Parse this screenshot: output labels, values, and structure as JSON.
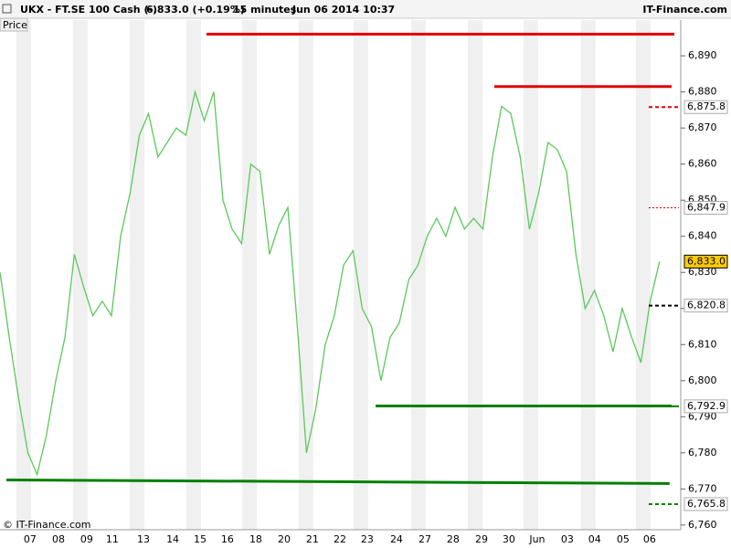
{
  "header": {
    "symbol": "UKX - FT.SE 100 Cash (-)",
    "quote": "6,833.0 (+0.19%)",
    "interval": "15 minutes",
    "datetime": "Jun 06 2014 10:37",
    "brand": "IT-Finance.com"
  },
  "panel_label": "Price",
  "copyright": "© IT-Finance.com",
  "chart_data": {
    "type": "line",
    "series": [
      {
        "color": "#5cc85c",
        "x": [
          0,
          0.33,
          0.67,
          1,
          1.33,
          1.67,
          2,
          2.33,
          2.67,
          3,
          3.33,
          3.67,
          4,
          4.33,
          4.67,
          5,
          5.33,
          5.67,
          6,
          6.33,
          6.67,
          7,
          7.33,
          7.67,
          8,
          8.33,
          8.67,
          9,
          9.33,
          9.67,
          10,
          10.33,
          10.67,
          11,
          11.33,
          11.67,
          12,
          12.33,
          12.67,
          13,
          13.33,
          13.67,
          14,
          14.33,
          14.67,
          15,
          15.33,
          15.67,
          16,
          16.33,
          16.67,
          17,
          17.33,
          17.67,
          18,
          18.33,
          18.67,
          19,
          19.33,
          19.67,
          20,
          20.33,
          20.67,
          21,
          21.33,
          21.67,
          22,
          22.33,
          22.67,
          23,
          23.33,
          23.67
        ],
        "values": [
          6830,
          6812,
          6795,
          6780,
          6774,
          6785,
          6800,
          6812,
          6835,
          6826,
          6818,
          6822,
          6818,
          6840,
          6852,
          6868,
          6874,
          6862,
          6866,
          6870,
          6868,
          6880,
          6872,
          6880,
          6850,
          6842,
          6838,
          6860,
          6858,
          6835,
          6843,
          6848,
          6815,
          6780,
          6792,
          6810,
          6818,
          6832,
          6836,
          6820,
          6815,
          6800,
          6812,
          6816,
          6828,
          6832,
          6840,
          6845,
          6840,
          6848,
          6842,
          6845,
          6842,
          6862,
          6876,
          6874,
          6862,
          6842,
          6852,
          6866,
          6864,
          6858,
          6835,
          6820,
          6825,
          6818,
          6808,
          6820,
          6812,
          6805,
          6822,
          6833
        ]
      }
    ],
    "trend_lines": [
      {
        "x": [
          7.41,
          24.2
        ],
        "values": [
          6896,
          6896
        ],
        "color": "#e00000"
      },
      {
        "x": [
          17.74,
          24.1
        ],
        "values": [
          6881.5,
          6881.5
        ],
        "color": "#e00000"
      },
      {
        "x": [
          13.48,
          24.1
        ],
        "values": [
          6793,
          6793
        ],
        "color": "#008000"
      },
      {
        "x": [
          0.23,
          24.03
        ],
        "values": [
          6772.5,
          6771.5
        ],
        "color": "#008000"
      }
    ],
    "levels": [
      {
        "value": 6875.8,
        "label": "6,875.8",
        "color": "#e00000",
        "style": "dashed"
      },
      {
        "value": 6847.9,
        "label": "6,847.9",
        "color": "#e00000",
        "style": "dotted"
      },
      {
        "value": 6833.0,
        "label": "6,833.0",
        "color": "#000000",
        "style": "current"
      },
      {
        "value": 6820.8,
        "label": "6,820.8",
        "color": "#000000",
        "style": "dashed"
      },
      {
        "value": 6792.9,
        "label": "6,792.9",
        "color": "#008000",
        "style": "solid"
      },
      {
        "value": 6765.8,
        "label": "6,765.8",
        "color": "#008000",
        "style": "dashed"
      }
    ],
    "xlim": [
      0,
      24.43
    ],
    "xticks": [
      {
        "value": 1.08,
        "label": "07"
      },
      {
        "value": 2.1,
        "label": "08"
      },
      {
        "value": 3.11,
        "label": "09"
      },
      {
        "value": 4.03,
        "label": "11"
      },
      {
        "value": 5.15,
        "label": "13"
      },
      {
        "value": 6.2,
        "label": "14"
      },
      {
        "value": 7.18,
        "label": "15"
      },
      {
        "value": 8.16,
        "label": "16"
      },
      {
        "value": 9.18,
        "label": "18"
      },
      {
        "value": 10.2,
        "label": "20"
      },
      {
        "value": 11.21,
        "label": "21"
      },
      {
        "value": 12.2,
        "label": "22"
      },
      {
        "value": 13.18,
        "label": "23"
      },
      {
        "value": 14.23,
        "label": "24"
      },
      {
        "value": 15.25,
        "label": "27"
      },
      {
        "value": 16.26,
        "label": "28"
      },
      {
        "value": 17.28,
        "label": "29"
      },
      {
        "value": 18.26,
        "label": "30"
      },
      {
        "value": 19.28,
        "label": "Jun"
      },
      {
        "value": 20.36,
        "label": "03"
      },
      {
        "value": 21.34,
        "label": "04"
      },
      {
        "value": 22.36,
        "label": "05"
      },
      {
        "value": 23.31,
        "label": "06"
      }
    ],
    "ylim": [
      6758.7,
      6899.9
    ],
    "yticks": [
      {
        "value": 6760,
        "label": "6,760"
      },
      {
        "value": 6770,
        "label": "6,770"
      },
      {
        "value": 6780,
        "label": "6,780"
      },
      {
        "value": 6790,
        "label": "6,790"
      },
      {
        "value": 6800,
        "label": "6,800"
      },
      {
        "value": 6810,
        "label": "6,810"
      },
      {
        "value": 6820,
        "label": "6,820"
      },
      {
        "value": 6830,
        "label": "6,830"
      },
      {
        "value": 6840,
        "label": "6,840"
      },
      {
        "value": 6850,
        "label": "6,850"
      },
      {
        "value": 6860,
        "label": "6,860"
      },
      {
        "value": 6870,
        "label": "6,870"
      },
      {
        "value": 6880,
        "label": "6,880"
      },
      {
        "value": 6890,
        "label": "6,890"
      }
    ]
  }
}
